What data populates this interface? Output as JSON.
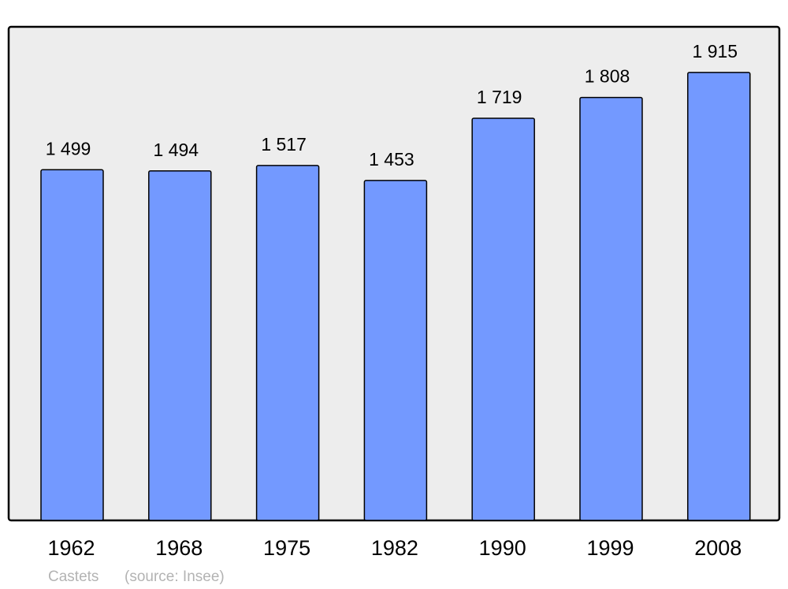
{
  "chart_data": {
    "type": "bar",
    "categories": [
      "1962",
      "1968",
      "1975",
      "1982",
      "1990",
      "1999",
      "2008"
    ],
    "values": [
      1499,
      1494,
      1517,
      1453,
      1719,
      1808,
      1915
    ],
    "value_labels": [
      "1 499",
      "1 494",
      "1 517",
      "1 453",
      "1 719",
      "1 808",
      "1 915"
    ],
    "ylim": [
      0,
      2110
    ],
    "grid": false,
    "title": "",
    "xlabel": "",
    "ylabel": "",
    "footer": {
      "place": "Castets",
      "source": "(source: Insee)"
    },
    "colors": {
      "bar": "#7399ff",
      "plot_background": "#ededed",
      "border": "#000000",
      "footer_text": "#b3b3b3"
    }
  }
}
